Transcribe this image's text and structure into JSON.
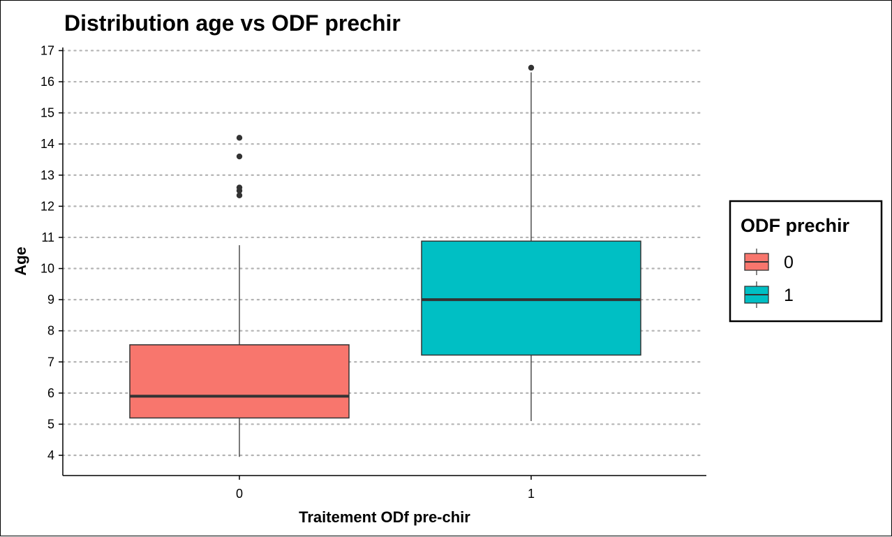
{
  "chart_data": {
    "type": "boxplot",
    "title": "Distribution age vs ODF prechir",
    "xlabel": "Traitement ODf pre-chir",
    "ylabel": "Age",
    "categories": [
      "0",
      "1"
    ],
    "ylim": [
      3.35,
      17.1
    ],
    "yticks": [
      4,
      5,
      6,
      7,
      8,
      9,
      10,
      11,
      12,
      13,
      14,
      15,
      16,
      17
    ],
    "grid": "horizontal-dotted",
    "legend": {
      "title": "ODF prechir",
      "position": "right",
      "entries": [
        {
          "label": "0",
          "color": "#F8766D"
        },
        {
          "label": "1",
          "color": "#00BFC4"
        }
      ]
    },
    "boxes": [
      {
        "category": "0",
        "fill": "#F8766D",
        "whisker_low": 3.95,
        "q1": 5.2,
        "median": 5.9,
        "q3": 7.55,
        "whisker_high": 10.75,
        "outliers": [
          12.35,
          12.5,
          12.6,
          13.6,
          14.2
        ]
      },
      {
        "category": "1",
        "fill": "#00BFC4",
        "whisker_low": 5.1,
        "q1": 7.22,
        "median": 9.0,
        "q3": 10.88,
        "whisker_high": 16.3,
        "outliers": [
          16.45
        ]
      }
    ]
  }
}
